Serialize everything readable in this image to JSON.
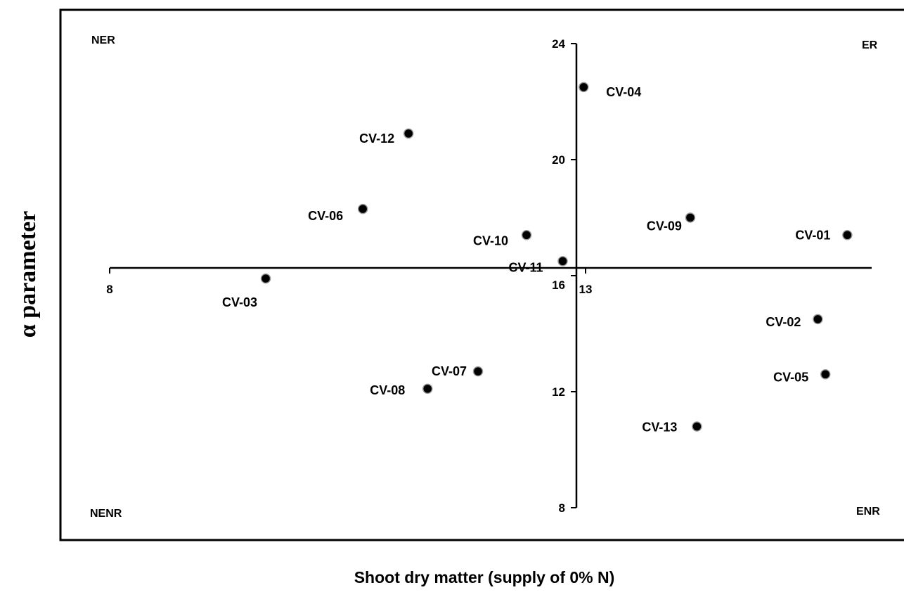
{
  "chart_data": {
    "type": "scatter",
    "xlabel": "Shoot dry matter (supply of 0% N)",
    "ylabel": "α parameter",
    "x_ticks": [
      8,
      13
    ],
    "y_ticks": [
      8,
      12,
      16,
      20,
      24
    ],
    "x_cross": 13,
    "y_cross": 16,
    "quadrants": {
      "top_left": "NER",
      "top_right": "ER",
      "bottom_left": "NENR",
      "bottom_right": "ENR"
    },
    "points": [
      {
        "label": "CV-01",
        "x": 15.75,
        "y": 17.4
      },
      {
        "label": "CV-02",
        "x": 15.44,
        "y": 14.5
      },
      {
        "label": "CV-03",
        "x": 9.64,
        "y": 15.9
      },
      {
        "label": "CV-04",
        "x": 12.98,
        "y": 22.5
      },
      {
        "label": "CV-05",
        "x": 15.52,
        "y": 12.6
      },
      {
        "label": "CV-06",
        "x": 10.66,
        "y": 18.3
      },
      {
        "label": "CV-07",
        "x": 11.87,
        "y": 12.7
      },
      {
        "label": "CV-08",
        "x": 11.34,
        "y": 12.1
      },
      {
        "label": "CV-09",
        "x": 14.1,
        "y": 18.0
      },
      {
        "label": "CV-10",
        "x": 12.38,
        "y": 17.4
      },
      {
        "label": "CV-11",
        "x": 12.76,
        "y": 16.5
      },
      {
        "label": "CV-12",
        "x": 11.14,
        "y": 20.9
      },
      {
        "label": "CV-13",
        "x": 14.17,
        "y": 10.8
      }
    ]
  }
}
